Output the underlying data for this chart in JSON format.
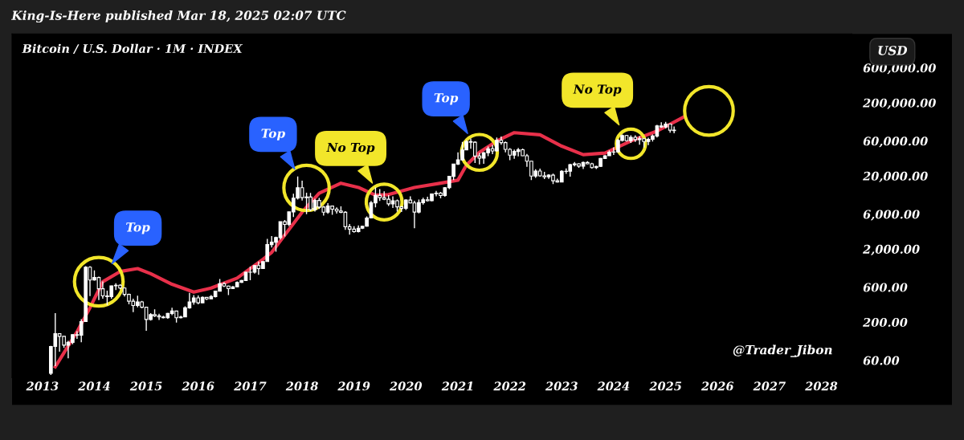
{
  "chart_data": {
    "type": "candlestick",
    "title": "Bitcoin / U.S. Dollar · 1M · INDEX",
    "x": [
      "2013-03",
      "2013-04",
      "2013-05",
      "2013-06",
      "2013-07",
      "2013-08",
      "2013-09",
      "2013-10",
      "2013-11",
      "2013-12",
      "2014-01",
      "2014-02",
      "2014-03",
      "2014-04",
      "2014-05",
      "2014-06",
      "2014-07",
      "2014-08",
      "2014-09",
      "2014-10",
      "2014-11",
      "2014-12",
      "2015-01",
      "2015-02",
      "2015-03",
      "2015-04",
      "2015-05",
      "2015-06",
      "2015-07",
      "2015-08",
      "2015-09",
      "2015-10",
      "2015-11",
      "2015-12",
      "2016-01",
      "2016-02",
      "2016-03",
      "2016-04",
      "2016-05",
      "2016-06",
      "2016-07",
      "2016-08",
      "2016-09",
      "2016-10",
      "2016-11",
      "2016-12",
      "2017-01",
      "2017-02",
      "2017-03",
      "2017-04",
      "2017-05",
      "2017-06",
      "2017-07",
      "2017-08",
      "2017-09",
      "2017-10",
      "2017-11",
      "2017-12",
      "2018-01",
      "2018-02",
      "2018-03",
      "2018-04",
      "2018-05",
      "2018-06",
      "2018-07",
      "2018-08",
      "2018-09",
      "2018-10",
      "2018-11",
      "2018-12",
      "2019-01",
      "2019-02",
      "2019-03",
      "2019-04",
      "2019-05",
      "2019-06",
      "2019-07",
      "2019-08",
      "2019-09",
      "2019-10",
      "2019-11",
      "2019-12",
      "2020-01",
      "2020-02",
      "2020-03",
      "2020-04",
      "2020-05",
      "2020-06",
      "2020-07",
      "2020-08",
      "2020-09",
      "2020-10",
      "2020-11",
      "2020-12",
      "2021-01",
      "2021-02",
      "2021-03",
      "2021-04",
      "2021-05",
      "2021-06",
      "2021-07",
      "2021-08",
      "2021-09",
      "2021-10",
      "2021-11",
      "2021-12",
      "2022-01",
      "2022-02",
      "2022-03",
      "2022-04",
      "2022-05",
      "2022-06",
      "2022-07",
      "2022-08",
      "2022-09",
      "2022-10",
      "2022-11",
      "2022-12",
      "2023-01",
      "2023-02",
      "2023-03",
      "2023-04",
      "2023-05",
      "2023-06",
      "2023-07",
      "2023-08",
      "2023-09",
      "2023-10",
      "2023-11",
      "2023-12",
      "2024-01",
      "2024-02",
      "2024-03",
      "2024-04",
      "2024-05",
      "2024-06",
      "2024-07",
      "2024-08",
      "2024-09",
      "2024-10",
      "2024-11",
      "2024-12",
      "2025-01",
      "2025-02",
      "2025-03"
    ],
    "ohlc": [
      [
        40,
        95,
        38,
        93
      ],
      [
        93,
        266,
        50,
        139
      ],
      [
        139,
        140,
        79,
        128
      ],
      [
        128,
        129,
        89,
        97
      ],
      [
        97,
        111,
        64,
        106
      ],
      [
        106,
        136,
        100,
        135
      ],
      [
        135,
        150,
        118,
        133
      ],
      [
        133,
        220,
        106,
        204
      ],
      [
        204,
        1163,
        203,
        1130
      ],
      [
        1130,
        1163,
        456,
        754
      ],
      [
        754,
        1022,
        740,
        815
      ],
      [
        815,
        840,
        400,
        573
      ],
      [
        573,
        720,
        420,
        458
      ],
      [
        458,
        540,
        340,
        447
      ],
      [
        447,
        630,
        420,
        628
      ],
      [
        628,
        680,
        550,
        640
      ],
      [
        640,
        660,
        565,
        586
      ],
      [
        586,
        600,
        450,
        480
      ],
      [
        480,
        490,
        350,
        387
      ],
      [
        387,
        420,
        275,
        338
      ],
      [
        338,
        460,
        320,
        378
      ],
      [
        378,
        390,
        310,
        320
      ],
      [
        320,
        320,
        152,
        218
      ],
      [
        218,
        265,
        210,
        254
      ],
      [
        254,
        300,
        235,
        244
      ],
      [
        244,
        260,
        215,
        236
      ],
      [
        236,
        245,
        225,
        230
      ],
      [
        230,
        268,
        222,
        263
      ],
      [
        263,
        315,
        250,
        284
      ],
      [
        284,
        285,
        198,
        230
      ],
      [
        230,
        245,
        225,
        236
      ],
      [
        236,
        330,
        235,
        314
      ],
      [
        314,
        502,
        305,
        377
      ],
      [
        377,
        468,
        346,
        430
      ],
      [
        430,
        462,
        350,
        368
      ],
      [
        368,
        448,
        365,
        437
      ],
      [
        437,
        440,
        400,
        416
      ],
      [
        416,
        470,
        415,
        448
      ],
      [
        448,
        540,
        436,
        531
      ],
      [
        531,
        780,
        528,
        673
      ],
      [
        673,
        705,
        605,
        624
      ],
      [
        624,
        630,
        470,
        574
      ],
      [
        574,
        625,
        570,
        609
      ],
      [
        609,
        720,
        604,
        700
      ],
      [
        700,
        755,
        690,
        742
      ],
      [
        742,
        975,
        740,
        963
      ],
      [
        963,
        1150,
        750,
        965
      ],
      [
        965,
        1200,
        920,
        1190
      ],
      [
        1190,
        1350,
        890,
        1080
      ],
      [
        1080,
        1350,
        1080,
        1350
      ],
      [
        1350,
        2760,
        1350,
        2300
      ],
      [
        2300,
        3000,
        2100,
        2480
      ],
      [
        2480,
        2950,
        1840,
        2870
      ],
      [
        2870,
        4750,
        2700,
        4730
      ],
      [
        4730,
        4980,
        2970,
        4340
      ],
      [
        4340,
        6470,
        4110,
        6440
      ],
      [
        6440,
        11400,
        5500,
        9950
      ],
      [
        9950,
        19700,
        9500,
        13800
      ],
      [
        13800,
        17200,
        9200,
        10100
      ],
      [
        10100,
        11800,
        6000,
        10300
      ],
      [
        10300,
        11700,
        6600,
        6900
      ],
      [
        6900,
        9750,
        6500,
        9240
      ],
      [
        9240,
        9990,
        7050,
        7490
      ],
      [
        7490,
        7760,
        5750,
        6390
      ],
      [
        6390,
        8500,
        6070,
        7730
      ],
      [
        7730,
        7760,
        5880,
        7030
      ],
      [
        7030,
        7410,
        6100,
        6630
      ],
      [
        6630,
        7680,
        6200,
        6370
      ],
      [
        6370,
        6600,
        3650,
        4040
      ],
      [
        4040,
        4400,
        3150,
        3740
      ],
      [
        3740,
        4100,
        3350,
        3460
      ],
      [
        3460,
        4200,
        3380,
        3850
      ],
      [
        3850,
        4150,
        3750,
        4100
      ],
      [
        4100,
        5600,
        4050,
        5320
      ],
      [
        5320,
        9100,
        5300,
        8570
      ],
      [
        8570,
        13880,
        7450,
        10820
      ],
      [
        10820,
        13200,
        9100,
        10080
      ],
      [
        10080,
        12330,
        9350,
        9600
      ],
      [
        9600,
        10950,
        7750,
        8290
      ],
      [
        8290,
        10500,
        7300,
        9150
      ],
      [
        9150,
        9520,
        6520,
        7540
      ],
      [
        7540,
        7750,
        6430,
        7190
      ],
      [
        7190,
        9580,
        6850,
        9350
      ],
      [
        9350,
        10500,
        8450,
        8530
      ],
      [
        8530,
        9180,
        3850,
        6410
      ],
      [
        6410,
        9480,
        6150,
        8630
      ],
      [
        8630,
        10070,
        8100,
        9450
      ],
      [
        9450,
        10380,
        8900,
        9140
      ],
      [
        9140,
        11450,
        8970,
        11350
      ],
      [
        11350,
        12480,
        10550,
        11650
      ],
      [
        11650,
        12070,
        9880,
        10780
      ],
      [
        10780,
        14100,
        10380,
        13800
      ],
      [
        13800,
        19800,
        13200,
        19700
      ],
      [
        19700,
        29300,
        17600,
        28990
      ],
      [
        28990,
        41950,
        28130,
        33140
      ],
      [
        33140,
        58350,
        32300,
        45240
      ],
      [
        45240,
        61780,
        44950,
        58800
      ],
      [
        58800,
        64900,
        47000,
        57700
      ],
      [
        57700,
        59600,
        30000,
        37300
      ],
      [
        37300,
        41300,
        28800,
        35040
      ],
      [
        35040,
        42400,
        29300,
        41460
      ],
      [
        41460,
        50500,
        37300,
        47100
      ],
      [
        47100,
        52900,
        39600,
        43800
      ],
      [
        43800,
        67000,
        43300,
        61300
      ],
      [
        61300,
        69000,
        53250,
        57000
      ],
      [
        57000,
        59100,
        42000,
        46200
      ],
      [
        46200,
        47990,
        32900,
        38480
      ],
      [
        38480,
        45800,
        34300,
        43190
      ],
      [
        43190,
        48200,
        37100,
        45540
      ],
      [
        45540,
        47450,
        37500,
        37640
      ],
      [
        37640,
        40000,
        26700,
        31800
      ],
      [
        31800,
        31900,
        17600,
        19940
      ],
      [
        19940,
        24650,
        18780,
        23300
      ],
      [
        23300,
        25200,
        19550,
        20050
      ],
      [
        20050,
        22800,
        18150,
        19430
      ],
      [
        19430,
        21100,
        18200,
        20490
      ],
      [
        20490,
        21480,
        15480,
        17170
      ],
      [
        17170,
        18380,
        16300,
        16540
      ],
      [
        16540,
        23960,
        16500,
        23130
      ],
      [
        23130,
        25250,
        21400,
        23150
      ],
      [
        23150,
        29200,
        19550,
        28480
      ],
      [
        28480,
        31000,
        26950,
        29250
      ],
      [
        29250,
        29820,
        25800,
        27220
      ],
      [
        27220,
        31400,
        24800,
        30480
      ],
      [
        30480,
        31800,
        28860,
        29230
      ],
      [
        29230,
        30250,
        25160,
        25940
      ],
      [
        25940,
        27490,
        24900,
        26970
      ],
      [
        26970,
        35200,
        26560,
        34650
      ],
      [
        34650,
        38420,
        34100,
        37720
      ],
      [
        37720,
        44750,
        37600,
        42280
      ],
      [
        42280,
        49050,
        38550,
        42580
      ],
      [
        42580,
        64000,
        41900,
        61200
      ],
      [
        61200,
        73800,
        59000,
        71300
      ],
      [
        71300,
        72800,
        59200,
        60640
      ],
      [
        60640,
        71950,
        56550,
        67500
      ],
      [
        67500,
        71980,
        58400,
        62700
      ],
      [
        62700,
        70000,
        53500,
        64600
      ],
      [
        64600,
        65100,
        49000,
        58970
      ],
      [
        58970,
        66500,
        52550,
        63330
      ],
      [
        63330,
        73600,
        58900,
        70200
      ],
      [
        70200,
        99600,
        66800,
        96450
      ],
      [
        96450,
        108300,
        90500,
        93430
      ],
      [
        93430,
        109600,
        89200,
        102400
      ],
      [
        102400,
        102500,
        78200,
        84350
      ],
      [
        84350,
        95000,
        76600,
        83000
      ]
    ],
    "series": [
      {
        "type": "line",
        "color": "#e8304a",
        "x": [
          "2013-04",
          "2013-09",
          "2013-12",
          "2014-03",
          "2014-07",
          "2014-11",
          "2015-02",
          "2015-07",
          "2015-12",
          "2016-04",
          "2016-10",
          "2017-04",
          "2017-06",
          "2018-01",
          "2018-05",
          "2018-10",
          "2019-02",
          "2019-06",
          "2019-09",
          "2020-03",
          "2020-09",
          "2021-01",
          "2021-03",
          "2021-06",
          "2021-10",
          "2022-02",
          "2022-08",
          "2023-01",
          "2023-06",
          "2023-11",
          "2024-05",
          "2024-11",
          "2025-05"
        ],
        "values": [
          49,
          148,
          315,
          715,
          985,
          1080,
          920,
          660,
          515,
          585,
          800,
          1450,
          1800,
          6400,
          11600,
          15900,
          13900,
          10900,
          11100,
          13900,
          15900,
          17500,
          28000,
          42000,
          60000,
          78000,
          73000,
          51000,
          39000,
          41000,
          60000,
          82000,
          126000
        ]
      },
      {
        "type": "bubble",
        "color": "#f2e62a",
        "x": [
          "2014-02",
          "2018-02",
          "2019-08",
          "2021-06",
          "2024-05",
          "2025-11"
        ],
        "values": [
          715,
          13700,
          8800,
          42000,
          55000,
          155000
        ],
        "sizes": [
          1,
          0.87,
          0.54,
          0.54,
          0.36,
          1
        ]
      }
    ],
    "xlim": [
      "2012-06",
      "2028-08"
    ],
    "xticks": [
      "2013",
      "2014",
      "2015",
      "2016",
      "2017",
      "2018",
      "2019",
      "2020",
      "2021",
      "2022",
      "2023",
      "2024",
      "2025",
      "2026",
      "2027",
      "2028"
    ],
    "ylim": [
      35,
      1750000
    ],
    "log": true,
    "yticks": [
      {
        "value": 60,
        "label": "60.00"
      },
      {
        "value": 200,
        "label": "200.00"
      },
      {
        "value": 600,
        "label": "600.00"
      },
      {
        "value": 2000,
        "label": "2,000.00"
      },
      {
        "value": 6000,
        "label": "6,000.00"
      },
      {
        "value": 20000,
        "label": "20,000.00"
      },
      {
        "value": 60000,
        "label": "60,000.00"
      },
      {
        "value": 200000,
        "label": "200,000.00"
      },
      {
        "value": 600000,
        "label": "600,000.00"
      }
    ],
    "grid": false,
    "annotations": [
      "King-Is-Here published Mar 18, 2025 02:07 UTC",
      "USD",
      "@Trader_Jibon",
      "Top",
      "Top",
      "No Top",
      "Top",
      "No Top"
    ]
  }
}
